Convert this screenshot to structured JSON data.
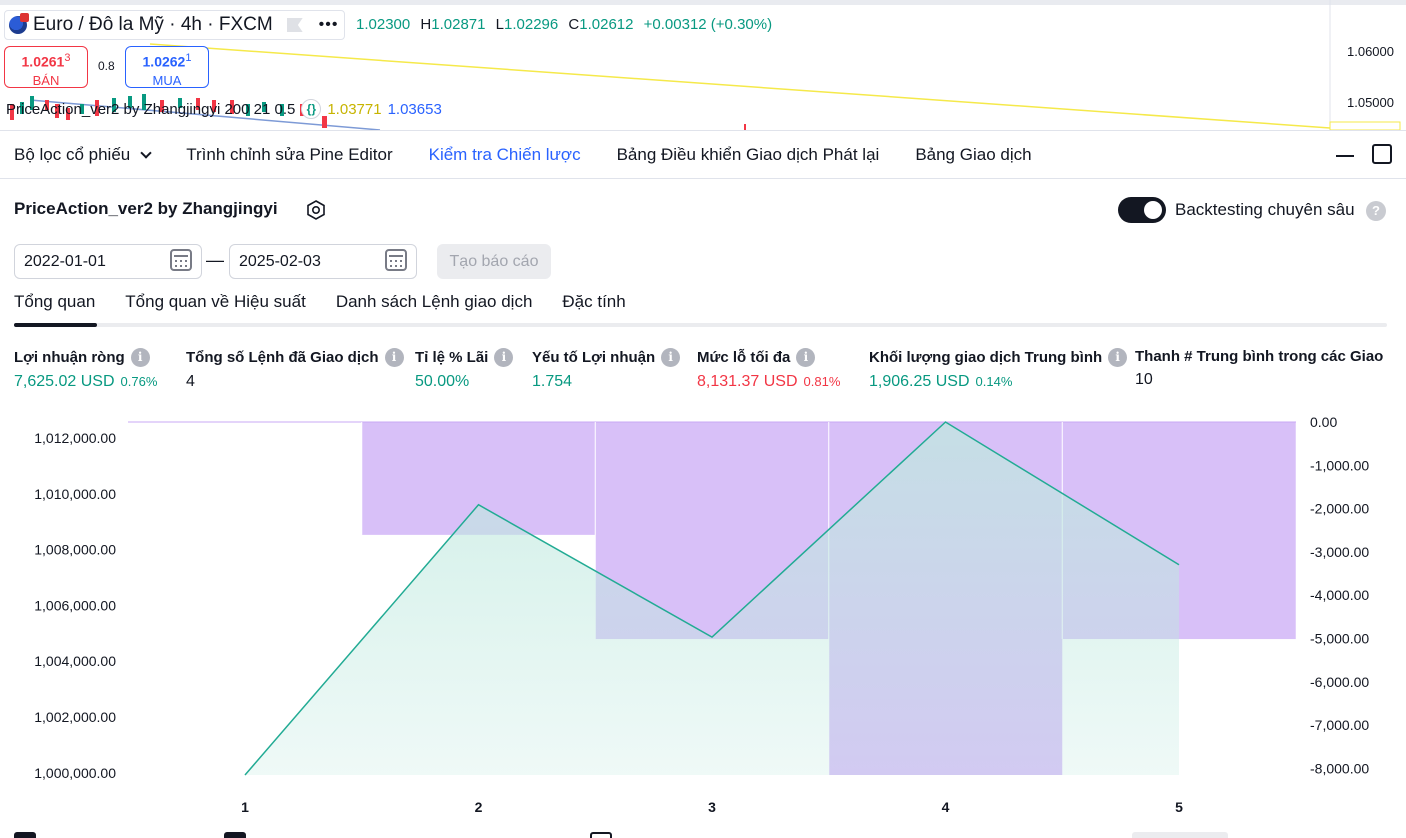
{
  "symbol": {
    "title": "Euro / Đô la Mỹ · 4h · FXCM",
    "ohlc_prefix": "1.02300",
    "high_label": "H",
    "high": "1.02871",
    "low_label": "L",
    "low": "1.02296",
    "close_label": "C",
    "close": "1.02612",
    "change": "+0.00312 (+0.30%)"
  },
  "trade": {
    "sell_price": "1.0261",
    "sell_sup": "3",
    "sell_label": "BÁN",
    "spread": "0.8",
    "buy_price": "1.0262",
    "buy_sup": "1",
    "buy_label": "MUA"
  },
  "indicator": {
    "name": "PriceAction_ver2 by Zhangjingyi 200 21 0.5",
    "value1": "1.03771",
    "value2": "1.03653"
  },
  "top_axis": {
    "p1": "1.06000",
    "p2": "1.05000"
  },
  "panel_tabs": [
    {
      "label": "Bộ lọc cổ phiếu"
    },
    {
      "label": "Trình chỉnh sửa Pine Editor"
    },
    {
      "label": "Kiểm tra Chiến lược"
    },
    {
      "label": "Bảng Điều khiển Giao dịch Phát lại"
    },
    {
      "label": "Bảng Giao dịch"
    }
  ],
  "strategy": {
    "name": "PriceAction_ver2 by Zhangjingyi",
    "deep_backtest_label": "Backtesting chuyên sâu",
    "date_start": "2022-01-01",
    "date_end": "2025-02-03",
    "dash": "—",
    "report_button": "Tạo báo cáo"
  },
  "subtabs": [
    {
      "label": "Tổng quan"
    },
    {
      "label": "Tổng quan về Hiệu suất"
    },
    {
      "label": "Danh sách Lệnh giao dịch"
    },
    {
      "label": "Đặc tính"
    }
  ],
  "metrics": [
    {
      "label": "Lợi nhuận ròng",
      "value": "7,625.02 USD",
      "pct": "0.76%",
      "tone": "pos"
    },
    {
      "label": "Tổng số Lệnh đã Giao dịch",
      "value": "4",
      "pct": "",
      "tone": ""
    },
    {
      "label": "Tỉ lệ % Lãi",
      "value": "50.00%",
      "pct": "",
      "tone": "pos"
    },
    {
      "label": "Yếu tố Lợi nhuận",
      "value": "1.754",
      "pct": "",
      "tone": "pos"
    },
    {
      "label": "Mức lỗ tối đa",
      "value": "8,131.37 USD",
      "pct": "0.81%",
      "tone": "neg"
    },
    {
      "label": "Khối lượng giao dịch Trung bình",
      "value": "1,906.25 USD",
      "pct": "0.14%",
      "tone": "pos"
    },
    {
      "label": "Thanh # Trung bình trong các Giao d",
      "value": "10",
      "pct": "",
      "tone": ""
    }
  ],
  "colors": {
    "accent": "#2962ff",
    "positive": "#089981",
    "negative": "#f23645",
    "drawdown": "#c9a8f5",
    "equity_fill": "#bfe9df",
    "equity_line": "#22ab94"
  },
  "chart_data": {
    "type": "line",
    "x": [
      1,
      2,
      3,
      4,
      5
    ],
    "equity": [
      1000000,
      1009800,
      1005000,
      1012800,
      1007625.02
    ],
    "drawdown_bars": [
      0,
      -2600,
      -5000,
      -8131.37,
      -5000
    ],
    "left_axis_ticks": [
      "1,012,000.00",
      "1,010,000.00",
      "1,008,000.00",
      "1,006,000.00",
      "1,004,000.00",
      "1,002,000.00",
      "1,000,000.00"
    ],
    "right_axis_ticks": [
      "0.00",
      "-1,000.00",
      "-2,000.00",
      "-3,000.00",
      "-4,000.00",
      "-5,000.00",
      "-6,000.00",
      "-7,000.00",
      "-8,000.00"
    ],
    "x_ticks": [
      "1",
      "2",
      "3",
      "4",
      "5"
    ],
    "left_ylim": [
      1000000,
      1012800
    ],
    "right_ylim": [
      -8131.37,
      0
    ]
  }
}
